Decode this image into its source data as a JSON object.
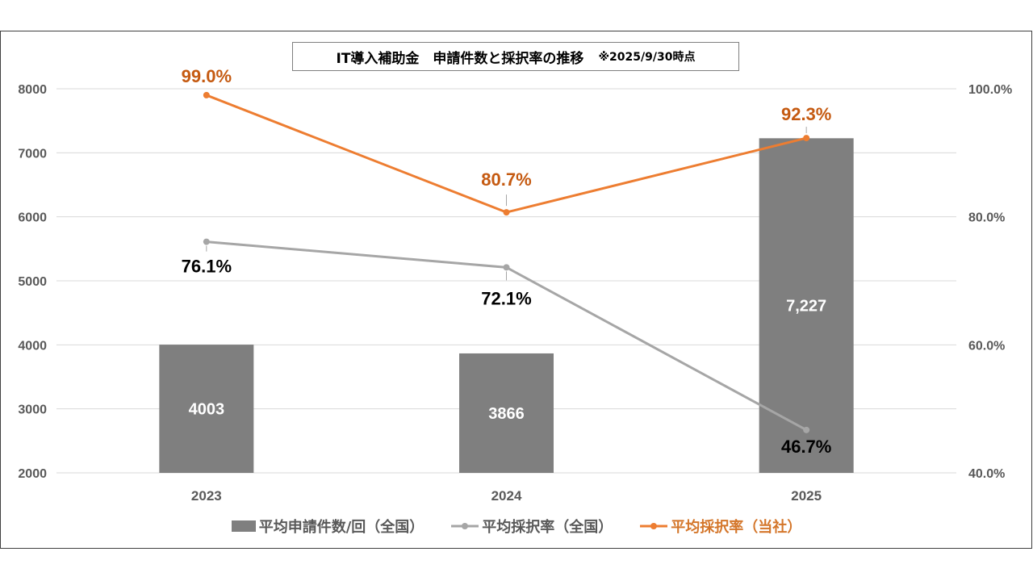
{
  "title": {
    "main": "IT導入補助金　申請件数と採択率の推移",
    "note": "※2025/9/30時点"
  },
  "legend": {
    "bars": "平均申請件数/回（全国）",
    "national_rate": "平均採択率（全国）",
    "company_rate": "平均採択率（当社）"
  },
  "colors": {
    "bar": "#7f7f7f",
    "national_line": "#a6a6a6",
    "company_line": "#ed7d31",
    "company_label": "#c55a11",
    "axis_text": "#595959",
    "grid": "#d9d9d9"
  },
  "chart_data": {
    "type": "bar+line",
    "categories": [
      "2023",
      "2024",
      "2025"
    ],
    "y_left": {
      "min": 2000,
      "max": 8000,
      "ticks": [
        "2000",
        "3000",
        "4000",
        "5000",
        "6000",
        "7000",
        "8000"
      ]
    },
    "y_right": {
      "min": 40,
      "max": 100,
      "ticks": [
        "40.0%",
        "60.0%",
        "80.0%",
        "100.0%"
      ]
    },
    "grid": true,
    "legend_position": "bottom",
    "series": [
      {
        "name": "平均申請件数/回（全国）",
        "kind": "bar",
        "axis": "left",
        "values": [
          4003,
          3866,
          7227
        ],
        "labels": [
          "4003",
          "3866",
          "7,227"
        ]
      },
      {
        "name": "平均採択率（全国）",
        "kind": "line",
        "axis": "right",
        "values": [
          76.1,
          72.1,
          46.7
        ],
        "labels": [
          "76.1%",
          "72.1%",
          "46.7%"
        ]
      },
      {
        "name": "平均採択率（当社）",
        "kind": "line",
        "axis": "right",
        "values": [
          99.0,
          80.7,
          92.3
        ],
        "labels": [
          "99.0%",
          "80.7%",
          "92.3%"
        ]
      }
    ]
  }
}
